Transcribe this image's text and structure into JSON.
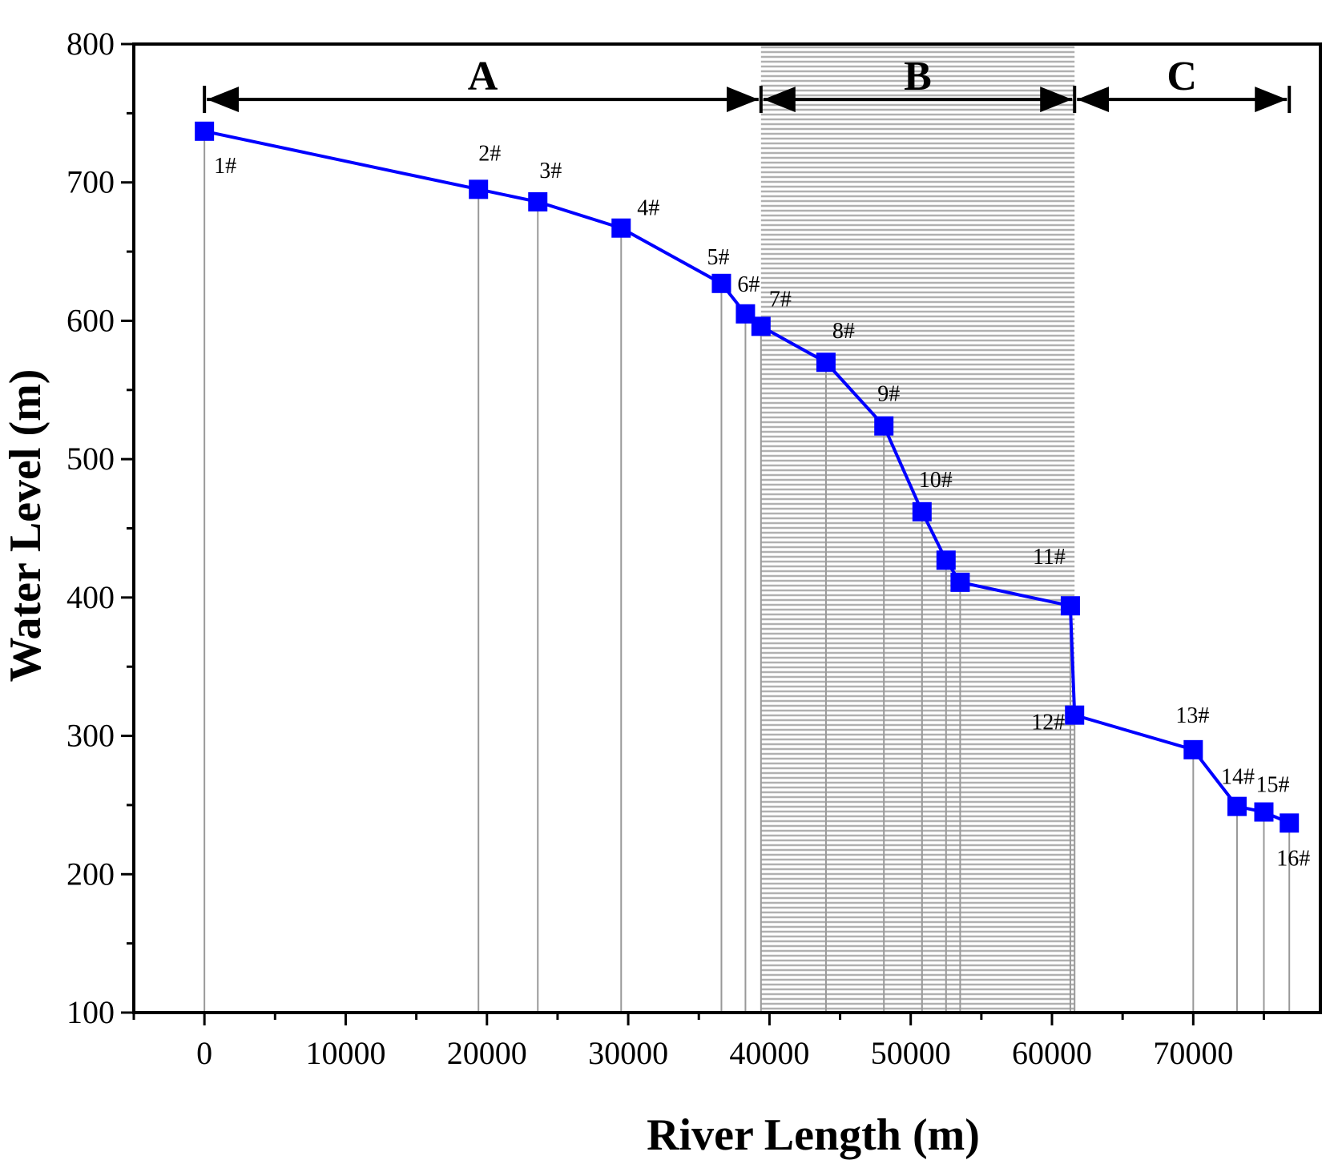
{
  "chart_data": {
    "type": "line",
    "xlabel": "River Length (m)",
    "ylabel": "Water Level (m)",
    "xlim": [
      -5000,
      79000
    ],
    "ylim": [
      100,
      800
    ],
    "xticks": [
      0,
      10000,
      20000,
      30000,
      40000,
      50000,
      60000,
      70000
    ],
    "yticks": [
      100,
      200,
      300,
      400,
      500,
      600,
      700,
      800
    ],
    "x_minor_step": 5000,
    "y_minor_step": 50,
    "series": [
      {
        "name": "Water Level",
        "color": "#0000ff",
        "marker": "square",
        "points": [
          {
            "label": "1#",
            "x": 0,
            "y": 737
          },
          {
            "label": "2#",
            "x": 19400,
            "y": 695
          },
          {
            "label": "3#",
            "x": 23600,
            "y": 686
          },
          {
            "label": "4#",
            "x": 29500,
            "y": 667
          },
          {
            "label": "5#",
            "x": 36600,
            "y": 627
          },
          {
            "label": "6#",
            "x": 38300,
            "y": 605
          },
          {
            "label": "7#",
            "x": 39400,
            "y": 596
          },
          {
            "label": "8#",
            "x": 44000,
            "y": 570
          },
          {
            "label": "9#",
            "x": 48100,
            "y": 524
          },
          {
            "label": "10#",
            "x": 50800,
            "y": 462
          },
          {
            "label": "11#",
            "x": 61300,
            "y": 394
          },
          {
            "label": "12#",
            "x": 61600,
            "y": 315
          },
          {
            "label": "13#",
            "x": 70000,
            "y": 290
          },
          {
            "label": "14#",
            "x": 73100,
            "y": 249
          },
          {
            "label": "15#",
            "x": 75000,
            "y": 245
          },
          {
            "label": "16#",
            "x": 76800,
            "y": 237
          }
        ],
        "unlabeled_points": [
          {
            "x": 52500,
            "y": 427
          },
          {
            "x": 53500,
            "y": 411
          }
        ]
      }
    ],
    "regions": [
      {
        "label": "A",
        "x_start": 0,
        "x_end": 39400,
        "shaded": false
      },
      {
        "label": "B",
        "x_start": 39400,
        "x_end": 61600,
        "shaded": true
      },
      {
        "label": "C",
        "x_start": 61600,
        "x_end": 76800,
        "shaded": false
      }
    ],
    "region_arrow_y": 760,
    "colors": {
      "series": "#0000ff",
      "drop_lines": "#999999",
      "shading": "#b0b0b0",
      "axes": "#000000"
    }
  }
}
